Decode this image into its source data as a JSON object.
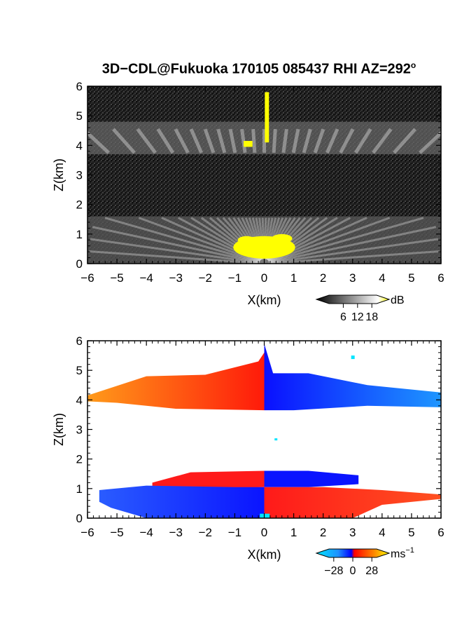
{
  "figure": {
    "title_main": "3D−CDL@Fukuoka 170105 085437 RHI AZ=292",
    "title_sup": "o"
  },
  "colors": {
    "background_noise": "#202020",
    "intensity_strong": "#e8e8e8",
    "intensity_high": "#ffff00",
    "velocity_positive": "#ff1a1a",
    "velocity_positive_far": "#ff8c1a",
    "velocity_negative": "#0a14ff",
    "velocity_negative_far": "#1e90ff",
    "velocity_zero_marker": "#00e5ff"
  },
  "chart_data": [
    {
      "type": "heatmap",
      "name": "intensity",
      "xlabel": "X(km)",
      "ylabel": "Z(km)",
      "xlim": [
        -6,
        6
      ],
      "ylim": [
        0,
        6
      ],
      "xticks": [
        "−6",
        "−5",
        "−4",
        "−3",
        "−2",
        "−1",
        "0",
        "1",
        "2",
        "3",
        "4",
        "5",
        "6"
      ],
      "yticks": [
        "0",
        "1",
        "2",
        "3",
        "4",
        "5",
        "6"
      ],
      "layers": [
        {
          "z_bottom": 0.0,
          "z_top": 1.6,
          "intensity_db_max": 18
        },
        {
          "z_bottom": 3.7,
          "z_top": 4.8,
          "intensity_db_max": 18
        }
      ],
      "colorbar": {
        "unit": "dB",
        "ticks": [
          "6",
          "12",
          "18"
        ],
        "range": [
          0,
          20
        ]
      }
    },
    {
      "type": "heatmap",
      "name": "velocity",
      "xlabel": "X(km)",
      "ylabel": "Z(km)",
      "xlim": [
        -6,
        6
      ],
      "ylim": [
        0,
        6
      ],
      "xticks": [
        "−6",
        "−5",
        "−4",
        "−3",
        "−2",
        "−1",
        "0",
        "1",
        "2",
        "3",
        "4",
        "5",
        "6"
      ],
      "yticks": [
        "0",
        "1",
        "2",
        "3",
        "4",
        "5",
        "6"
      ],
      "layers": [
        {
          "z_bottom": 3.7,
          "z_top": 4.9,
          "x_range": [
            -6,
            6
          ],
          "sign_left": "positive",
          "sign_right": "negative"
        },
        {
          "z_bottom": 1.0,
          "z_top": 1.6,
          "x_range": [
            -3.8,
            3.2
          ],
          "sign_left": "positive",
          "sign_right": "negative"
        },
        {
          "z_bottom": 0.0,
          "z_top": 1.1,
          "x_range": [
            -5.6,
            6
          ],
          "sign_left": "negative",
          "sign_right": "positive"
        }
      ],
      "colorbar": {
        "unit": "ms",
        "unit_sup": "−1",
        "ticks": [
          "−28",
          "0",
          "28"
        ],
        "range": [
          -35,
          35
        ]
      }
    }
  ]
}
